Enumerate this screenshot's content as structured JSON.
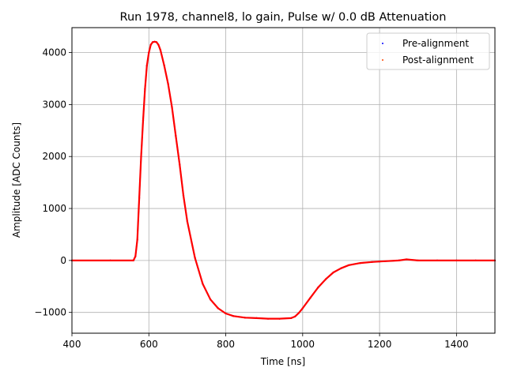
{
  "chart_data": {
    "type": "scatter",
    "title": "Run 1978, channel8, lo gain, Pulse w/ 0.0 dB Attenuation",
    "xlabel": "Time [ns]",
    "ylabel": "Amplitude [ADC Counts]",
    "xlim": [
      400,
      1500
    ],
    "ylim": [
      -1400,
      4480
    ],
    "xticks": [
      400,
      600,
      800,
      1000,
      1200,
      1400
    ],
    "yticks": [
      -1000,
      0,
      1000,
      2000,
      3000,
      4000
    ],
    "ytick_labels": [
      "−1000",
      "0",
      "1000",
      "2000",
      "3000",
      "4000"
    ],
    "grid": true,
    "legend_position": "top-right",
    "series": [
      {
        "name": "Pre-alignment",
        "color": "#0000ff",
        "x": [
          400,
          500,
          560,
          565,
          570,
          575,
          580,
          585,
          590,
          595,
          600,
          605,
          610,
          615,
          620,
          625,
          630,
          640,
          650,
          660,
          670,
          680,
          690,
          700,
          720,
          740,
          760,
          780,
          800,
          820,
          850,
          880,
          910,
          940,
          970,
          980,
          990,
          1000,
          1020,
          1040,
          1060,
          1080,
          1100,
          1120,
          1150,
          1180,
          1200,
          1250,
          1270,
          1300,
          1350,
          1400,
          1450,
          1500
        ],
        "values": [
          0,
          0,
          0,
          80,
          400,
          1200,
          2000,
          2700,
          3300,
          3750,
          4000,
          4150,
          4200,
          4210,
          4200,
          4150,
          4050,
          3750,
          3400,
          2950,
          2400,
          1850,
          1250,
          750,
          50,
          -450,
          -750,
          -920,
          -1020,
          -1070,
          -1100,
          -1110,
          -1120,
          -1120,
          -1110,
          -1080,
          -1010,
          -920,
          -720,
          -520,
          -360,
          -230,
          -150,
          -90,
          -50,
          -30,
          -20,
          0,
          20,
          0,
          0,
          0,
          0,
          0
        ]
      },
      {
        "name": "Post-alignment",
        "color": "#ff0000",
        "x": [
          400,
          500,
          560,
          565,
          570,
          575,
          580,
          585,
          590,
          595,
          600,
          605,
          610,
          615,
          620,
          625,
          630,
          640,
          650,
          660,
          670,
          680,
          690,
          700,
          720,
          740,
          760,
          780,
          800,
          820,
          850,
          880,
          910,
          940,
          970,
          980,
          990,
          1000,
          1020,
          1040,
          1060,
          1080,
          1100,
          1120,
          1150,
          1180,
          1200,
          1250,
          1270,
          1300,
          1350,
          1400,
          1450,
          1500
        ],
        "values": [
          0,
          0,
          0,
          80,
          400,
          1200,
          2000,
          2700,
          3300,
          3750,
          4000,
          4150,
          4200,
          4210,
          4200,
          4150,
          4050,
          3750,
          3400,
          2950,
          2400,
          1850,
          1250,
          750,
          50,
          -450,
          -750,
          -920,
          -1020,
          -1070,
          -1100,
          -1110,
          -1120,
          -1120,
          -1110,
          -1080,
          -1010,
          -920,
          -720,
          -520,
          -360,
          -230,
          -150,
          -90,
          -50,
          -30,
          -20,
          0,
          20,
          0,
          0,
          0,
          0,
          0
        ]
      }
    ]
  }
}
